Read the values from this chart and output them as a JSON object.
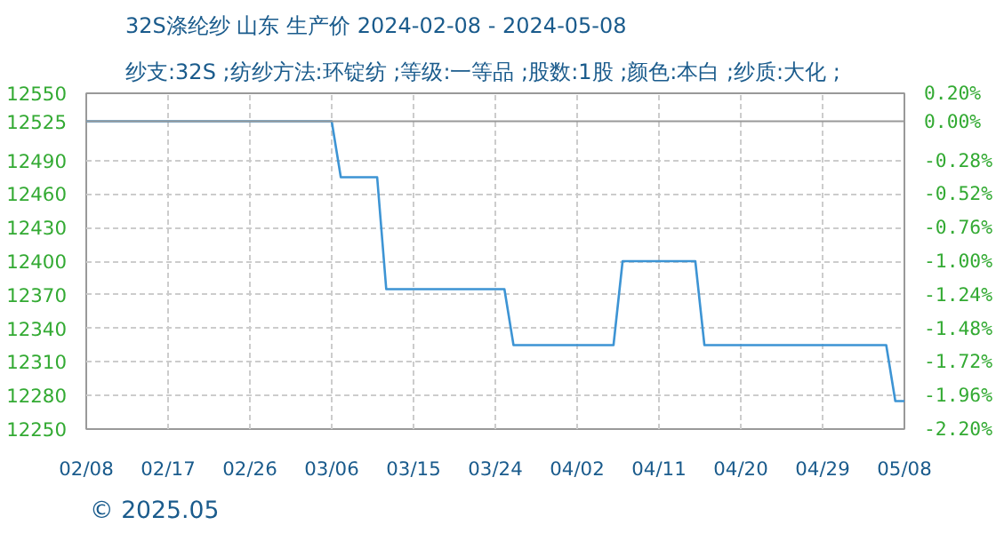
{
  "chart_data": {
    "type": "line",
    "title": "32S涤纶纱 山东 生产价 2024-02-08 - 2024-05-08",
    "subtitle": "纱支:32S ;纺纱方法:环锭纺 ;等级:一等品 ;股数:1股 ;颜色:本白 ;纱质:大化 ;",
    "x": [
      "2024-02-08",
      "2024-03-06",
      "2024-03-07",
      "2024-03-11",
      "2024-03-12",
      "2024-03-25",
      "2024-03-26",
      "2024-04-06",
      "2024-04-07",
      "2024-04-15",
      "2024-04-16",
      "2024-05-06",
      "2024-05-07",
      "2024-05-08"
    ],
    "series": [
      {
        "color": "#3d94d4",
        "values": [
          12525,
          12525,
          12475,
          12475,
          12375,
          12375,
          12325,
          12325,
          12400,
          12400,
          12325,
          12325,
          12275,
          12275
        ]
      }
    ],
    "xlim": [
      "2024-02-08",
      "2024-05-08"
    ],
    "xticks": [
      {
        "value": "2024-02-08",
        "label": "02/08"
      },
      {
        "value": "2024-02-17",
        "label": "02/17"
      },
      {
        "value": "2024-02-26",
        "label": "02/26"
      },
      {
        "value": "2024-03-06",
        "label": "03/06"
      },
      {
        "value": "2024-03-15",
        "label": "03/15"
      },
      {
        "value": "2024-03-24",
        "label": "03/24"
      },
      {
        "value": "2024-04-02",
        "label": "04/02"
      },
      {
        "value": "2024-04-11",
        "label": "04/11"
      },
      {
        "value": "2024-04-20",
        "label": "04/20"
      },
      {
        "value": "2024-04-29",
        "label": "04/29"
      },
      {
        "value": "2024-05-08",
        "label": "05/08"
      }
    ],
    "ylim": [
      12250,
      12550
    ],
    "yticks": [
      12250,
      12280,
      12310,
      12340,
      12370,
      12400,
      12430,
      12460,
      12490,
      12525,
      12550
    ],
    "y2lim": [
      -2.2,
      0.2
    ],
    "y2ticks": [
      {
        "value": -2.2,
        "label": "-2.20%"
      },
      {
        "value": -1.96,
        "label": "-1.96%"
      },
      {
        "value": -1.72,
        "label": "-1.72%"
      },
      {
        "value": -1.48,
        "label": "-1.48%"
      },
      {
        "value": -1.24,
        "label": "-1.24%"
      },
      {
        "value": -1.0,
        "label": "-1.00%"
      },
      {
        "value": -0.76,
        "label": "-0.76%"
      },
      {
        "value": -0.52,
        "label": "-0.52%"
      },
      {
        "value": -0.28,
        "label": "-0.28%"
      },
      {
        "value": 0.0,
        "label": "0.00%"
      },
      {
        "value": 0.2,
        "label": "0.20%"
      }
    ],
    "ref_lines": [
      {
        "axis": "y",
        "value": 12525,
        "color": "#999999",
        "line_style": "solid"
      }
    ],
    "grid": true,
    "marker": "none",
    "line_style": "solid",
    "annotations": [
      "© 2025.05"
    ]
  }
}
